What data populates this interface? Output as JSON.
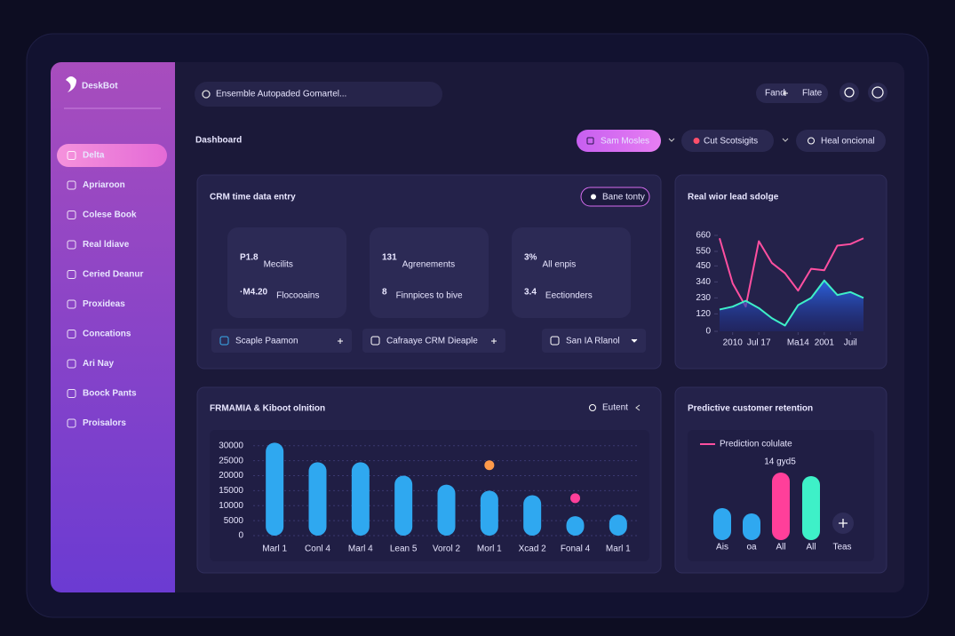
{
  "sidebar": {
    "brand": "DeskBot",
    "active": 0,
    "nav": [
      "Delta",
      "Apriaroon",
      "Colese Book",
      "Real ldiave",
      "Ceried Deanur",
      "Proxideas",
      "Concations",
      "Ari Nay",
      "Boock Pants",
      "Proisalors"
    ]
  },
  "topbar": {
    "search": "Ensemble Autopaded Gomartel...",
    "actions": [
      "Fand",
      "Flate"
    ]
  },
  "header": {
    "title": "Dashboard",
    "buttons": [
      "Sam Mosles",
      "Cut Scotsigits",
      "Heal oncional"
    ]
  },
  "crm_panel": {
    "title": "CRM time data entry",
    "badge": "Bane tonty",
    "kpis": [
      {
        "value": "P1.8",
        "label": "Mecilits",
        "value2": "·M4.20",
        "label2": "Flocooains",
        "color": "#ff5fb8"
      },
      {
        "value": "131",
        "label": "Agrenements",
        "value2": "8",
        "label2": "Finnpices to bive",
        "color": "#ffffff"
      },
      {
        "value": "3%",
        "label": "All enpis",
        "value2": "3.4",
        "label2": "Eectionders",
        "color": "#ff5fb8"
      }
    ],
    "tools": [
      "Scaple Paamon",
      "Cafraaye CRM Dieaple",
      "San IA Rlanol"
    ]
  },
  "chart_data": [
    {
      "type": "line",
      "title": "Real wior lead sdolge",
      "x": [
        0,
        1,
        2,
        3,
        4,
        5,
        6,
        7,
        8,
        9,
        10,
        11
      ],
      "xlim": [
        0,
        11
      ],
      "xticks": [
        {
          "value": 1,
          "label": "2010"
        },
        {
          "value": 3,
          "label": "Jul 17"
        },
        {
          "value": 6,
          "label": "Ma14"
        },
        {
          "value": 8,
          "label": "2001"
        },
        {
          "value": 10,
          "label": "Juil"
        }
      ],
      "ylim": [
        0,
        660
      ],
      "yticks": [
        0,
        120,
        230,
        340,
        450,
        550,
        660
      ],
      "series": [
        {
          "color": "#ff4fa0",
          "area": false,
          "values": [
            640,
            330,
            170,
            620,
            470,
            400,
            280,
            430,
            420,
            590,
            600,
            640
          ]
        },
        {
          "color": "#3ef0c8",
          "area": true,
          "values": [
            150,
            170,
            210,
            160,
            90,
            40,
            180,
            230,
            350,
            250,
            270,
            230
          ]
        }
      ]
    },
    {
      "type": "bar",
      "title": "FRMAMIA & Kiboot olnition",
      "categories": [
        "Marl 1",
        "Conl 4",
        "Marl 4",
        "Lean 5",
        "Vorol 2",
        "Morl 1",
        "Xcad 2",
        "Fonal 4",
        "Marl 1"
      ],
      "ylim": [
        0,
        32000
      ],
      "yticks": [
        0,
        5000,
        10000,
        15000,
        20000,
        25000,
        30000
      ],
      "grid": true,
      "series": [
        {
          "type": "bar",
          "color": "#2fa8f0",
          "values": [
            31000,
            24500,
            24500,
            20000,
            17000,
            15000,
            13500,
            6500,
            7000
          ]
        },
        {
          "type": "scatter",
          "name": "Eutent",
          "color": "#ff3f9a",
          "values": [
            null,
            null,
            null,
            null,
            null,
            23500,
            null,
            12500,
            null
          ],
          "point_colors": [
            null,
            null,
            null,
            null,
            null,
            "#ff9a4a",
            null,
            "#ff3f9a",
            null
          ]
        }
      ]
    },
    {
      "type": "bar",
      "title": "Predictive customer retention",
      "legend": "Prediction colulate",
      "legend_color": "#ff4fa0",
      "annotation": "14 gyd5",
      "categories": [
        "Ais",
        "oa",
        "All",
        "All"
      ],
      "values": [
        36,
        30,
        76,
        72
      ],
      "colors": [
        "#2fa8f0",
        "#2fa8f0",
        "#ff3f9a",
        "#3ef0c8"
      ],
      "ylim": [
        0,
        100
      ],
      "extra_label": "Teas"
    }
  ]
}
